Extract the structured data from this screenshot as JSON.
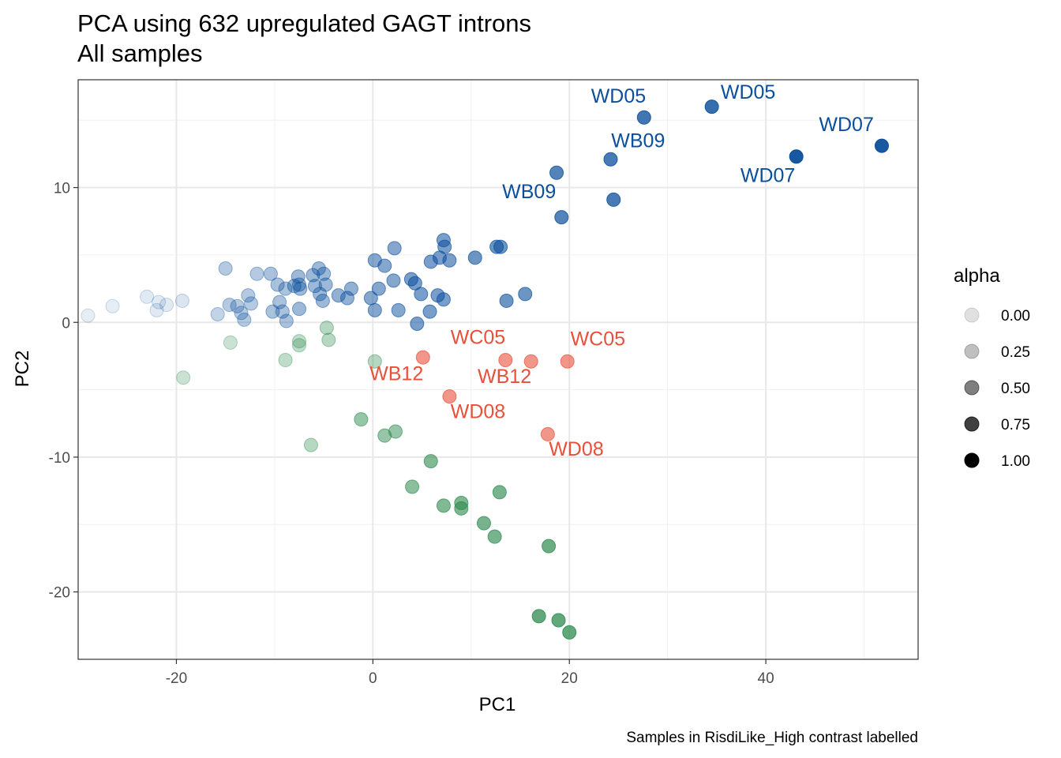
{
  "chart_data": {
    "type": "scatter",
    "title": "PCA using 632 upregulated GAGT introns",
    "subtitle": "All samples",
    "xlabel": "PC1",
    "ylabel": "PC2",
    "caption": "Samples in RisdiLike_High contrast labelled",
    "xlim": [
      -30,
      55.5
    ],
    "ylim": [
      -25,
      18
    ],
    "x_ticks": [
      -20,
      0,
      20,
      40
    ],
    "x_tick_labels": [
      "-20",
      "0",
      "20",
      "40"
    ],
    "y_ticks": [
      -20,
      -10,
      0,
      10
    ],
    "y_tick_labels": [
      "-20",
      "-10",
      "0",
      "10"
    ],
    "grid": true,
    "legend": {
      "title": "alpha",
      "position": "right",
      "levels": [
        0.0,
        0.25,
        0.5,
        0.75,
        1.0
      ],
      "labels": [
        "0.00",
        "0.25",
        "0.50",
        "0.75",
        "1.00"
      ]
    },
    "colors": {
      "blue": "#0b4f9c",
      "green": "#2e8b4f",
      "red": "#e8503a",
      "legend": "#000000"
    },
    "series": [
      {
        "name": "blue",
        "points": [
          {
            "x": -29,
            "y": 0.5,
            "a": 0.1
          },
          {
            "x": -26.5,
            "y": 1.2,
            "a": 0.1
          },
          {
            "x": -23,
            "y": 1.9,
            "a": 0.12
          },
          {
            "x": -22,
            "y": 0.9,
            "a": 0.12
          },
          {
            "x": -21.8,
            "y": 1.5,
            "a": 0.12
          },
          {
            "x": -21,
            "y": 1.3,
            "a": 0.12
          },
          {
            "x": -19.4,
            "y": 1.6,
            "a": 0.15
          },
          {
            "x": -15.8,
            "y": 0.6,
            "a": 0.25
          },
          {
            "x": -15,
            "y": 4.0,
            "a": 0.3
          },
          {
            "x": -14.6,
            "y": 1.3,
            "a": 0.3
          },
          {
            "x": -13.8,
            "y": 1.2,
            "a": 0.3
          },
          {
            "x": -13.4,
            "y": 0.7,
            "a": 0.3
          },
          {
            "x": -13.1,
            "y": 0.2,
            "a": 0.3
          },
          {
            "x": -12.7,
            "y": 2.0,
            "a": 0.3
          },
          {
            "x": -12.4,
            "y": 1.4,
            "a": 0.3
          },
          {
            "x": -11.8,
            "y": 3.6,
            "a": 0.3
          },
          {
            "x": -10.4,
            "y": 3.6,
            "a": 0.35
          },
          {
            "x": -10.2,
            "y": 0.8,
            "a": 0.35
          },
          {
            "x": -9.7,
            "y": 2.8,
            "a": 0.35
          },
          {
            "x": -9.5,
            "y": 1.5,
            "a": 0.35
          },
          {
            "x": -9.2,
            "y": 0.8,
            "a": 0.35
          },
          {
            "x": -8.9,
            "y": 2.5,
            "a": 0.35
          },
          {
            "x": -8.8,
            "y": 0.1,
            "a": 0.35
          },
          {
            "x": -8.0,
            "y": 2.7,
            "a": 0.4
          },
          {
            "x": -7.6,
            "y": 3.4,
            "a": 0.4
          },
          {
            "x": -7.5,
            "y": 2.8,
            "a": 0.4
          },
          {
            "x": -7.4,
            "y": 2.5,
            "a": 0.4
          },
          {
            "x": -7.5,
            "y": 1.0,
            "a": 0.4
          },
          {
            "x": -6.1,
            "y": 3.5,
            "a": 0.4
          },
          {
            "x": -5.9,
            "y": 2.7,
            "a": 0.4
          },
          {
            "x": -5.5,
            "y": 4.0,
            "a": 0.4
          },
          {
            "x": -5.4,
            "y": 2.1,
            "a": 0.4
          },
          {
            "x": -5.1,
            "y": 1.6,
            "a": 0.4
          },
          {
            "x": -4.8,
            "y": 2.8,
            "a": 0.4
          },
          {
            "x": -5.0,
            "y": 3.6,
            "a": 0.4
          },
          {
            "x": -3.5,
            "y": 2.0,
            "a": 0.45
          },
          {
            "x": -2.6,
            "y": 1.8,
            "a": 0.45
          },
          {
            "x": -2.2,
            "y": 2.5,
            "a": 0.45
          },
          {
            "x": -0.2,
            "y": 1.8,
            "a": 0.5
          },
          {
            "x": 0.2,
            "y": 4.6,
            "a": 0.5
          },
          {
            "x": 0.2,
            "y": 0.9,
            "a": 0.5
          },
          {
            "x": 0.6,
            "y": 2.5,
            "a": 0.5
          },
          {
            "x": 1.2,
            "y": 4.2,
            "a": 0.5
          },
          {
            "x": 2.1,
            "y": 3.1,
            "a": 0.5
          },
          {
            "x": 2.2,
            "y": 5.5,
            "a": 0.5
          },
          {
            "x": 2.6,
            "y": 0.9,
            "a": 0.5
          },
          {
            "x": 3.9,
            "y": 3.2,
            "a": 0.55
          },
          {
            "x": 4.3,
            "y": 2.9,
            "a": 0.55
          },
          {
            "x": 4.5,
            "y": -0.1,
            "a": 0.55
          },
          {
            "x": 4.9,
            "y": 2.1,
            "a": 0.55
          },
          {
            "x": 5.8,
            "y": 0.8,
            "a": 0.55
          },
          {
            "x": 5.9,
            "y": 4.5,
            "a": 0.55
          },
          {
            "x": 6.6,
            "y": 2.0,
            "a": 0.55
          },
          {
            "x": 6.8,
            "y": 4.8,
            "a": 0.55
          },
          {
            "x": 7.2,
            "y": 6.1,
            "a": 0.55
          },
          {
            "x": 7.3,
            "y": 5.6,
            "a": 0.55
          },
          {
            "x": 7.2,
            "y": 1.7,
            "a": 0.55
          },
          {
            "x": 7.8,
            "y": 4.6,
            "a": 0.55
          },
          {
            "x": 10.4,
            "y": 4.8,
            "a": 0.6
          },
          {
            "x": 12.6,
            "y": 5.6,
            "a": 0.6
          },
          {
            "x": 13.0,
            "y": 5.6,
            "a": 0.6
          },
          {
            "x": 13.6,
            "y": 1.6,
            "a": 0.6
          },
          {
            "x": 15.5,
            "y": 2.1,
            "a": 0.6
          },
          {
            "x": 18.7,
            "y": 11.1,
            "a": 0.7
          },
          {
            "x": 19.2,
            "y": 7.8,
            "a": 0.7
          },
          {
            "x": 24.2,
            "y": 12.1,
            "a": 0.75
          },
          {
            "x": 24.5,
            "y": 9.1,
            "a": 0.75
          },
          {
            "x": 27.6,
            "y": 15.2,
            "a": 0.78
          },
          {
            "x": 34.5,
            "y": 16.0,
            "a": 0.82
          },
          {
            "x": 43.1,
            "y": 12.3,
            "a": 0.95
          },
          {
            "x": 51.8,
            "y": 13.1,
            "a": 0.95
          }
        ]
      },
      {
        "name": "green",
        "points": [
          {
            "x": -19.3,
            "y": -4.1,
            "a": 0.25
          },
          {
            "x": -14.5,
            "y": -1.5,
            "a": 0.25
          },
          {
            "x": -8.9,
            "y": -2.8,
            "a": 0.3
          },
          {
            "x": -7.5,
            "y": -1.4,
            "a": 0.3
          },
          {
            "x": -7.5,
            "y": -1.7,
            "a": 0.3
          },
          {
            "x": -6.3,
            "y": -9.1,
            "a": 0.35
          },
          {
            "x": -4.7,
            "y": -0.4,
            "a": 0.35
          },
          {
            "x": -4.5,
            "y": -1.3,
            "a": 0.35
          },
          {
            "x": 0.2,
            "y": -2.9,
            "a": 0.35
          },
          {
            "x": -1.2,
            "y": -7.2,
            "a": 0.5
          },
          {
            "x": 1.2,
            "y": -8.4,
            "a": 0.5
          },
          {
            "x": 2.3,
            "y": -8.1,
            "a": 0.5
          },
          {
            "x": 4.0,
            "y": -12.2,
            "a": 0.55
          },
          {
            "x": 5.9,
            "y": -10.3,
            "a": 0.6
          },
          {
            "x": 7.2,
            "y": -13.6,
            "a": 0.6
          },
          {
            "x": 9.0,
            "y": -13.4,
            "a": 0.62
          },
          {
            "x": 9.0,
            "y": -13.8,
            "a": 0.62
          },
          {
            "x": 11.3,
            "y": -14.9,
            "a": 0.65
          },
          {
            "x": 12.4,
            "y": -15.9,
            "a": 0.65
          },
          {
            "x": 12.9,
            "y": -12.6,
            "a": 0.65
          },
          {
            "x": 17.9,
            "y": -16.6,
            "a": 0.7
          },
          {
            "x": 16.9,
            "y": -21.8,
            "a": 0.75
          },
          {
            "x": 18.9,
            "y": -22.1,
            "a": 0.75
          },
          {
            "x": 20.0,
            "y": -23.0,
            "a": 0.75
          }
        ]
      },
      {
        "name": "red",
        "points": [
          {
            "x": 5.1,
            "y": -2.6,
            "a": 0.6
          },
          {
            "x": 13.5,
            "y": -2.8,
            "a": 0.6
          },
          {
            "x": 16.1,
            "y": -2.9,
            "a": 0.6
          },
          {
            "x": 19.8,
            "y": -2.9,
            "a": 0.6
          },
          {
            "x": 7.8,
            "y": -5.5,
            "a": 0.6
          },
          {
            "x": 17.8,
            "y": -8.3,
            "a": 0.6
          }
        ]
      }
    ],
    "labels": [
      {
        "text": "WD05",
        "x": 25.0,
        "y": 16.3,
        "series": "blue",
        "anchor": "middle"
      },
      {
        "text": "WD05",
        "x": 35.4,
        "y": 16.6,
        "series": "blue",
        "anchor": "start"
      },
      {
        "text": "WD07",
        "x": 48.2,
        "y": 14.2,
        "series": "blue",
        "anchor": "middle"
      },
      {
        "text": "WD07",
        "x": 40.2,
        "y": 10.4,
        "series": "blue",
        "anchor": "middle"
      },
      {
        "text": "WB09",
        "x": 27.0,
        "y": 13.0,
        "series": "blue",
        "anchor": "middle"
      },
      {
        "text": "WB09",
        "x": 15.9,
        "y": 9.2,
        "series": "blue",
        "anchor": "middle"
      },
      {
        "text": "WC05",
        "x": 10.7,
        "y": -1.6,
        "series": "red",
        "anchor": "middle"
      },
      {
        "text": "WC05",
        "x": 22.9,
        "y": -1.7,
        "series": "red",
        "anchor": "middle"
      },
      {
        "text": "WB12",
        "x": 2.4,
        "y": -4.3,
        "series": "red",
        "anchor": "middle"
      },
      {
        "text": "WB12",
        "x": 13.4,
        "y": -4.5,
        "series": "red",
        "anchor": "middle"
      },
      {
        "text": "WD08",
        "x": 10.7,
        "y": -7.1,
        "series": "red",
        "anchor": "middle"
      },
      {
        "text": "WD08",
        "x": 20.7,
        "y": -9.9,
        "series": "red",
        "anchor": "middle"
      }
    ]
  }
}
